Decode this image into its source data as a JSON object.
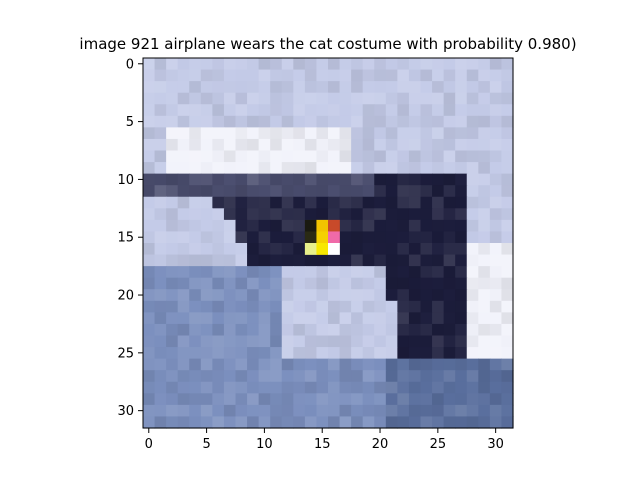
{
  "chart_data": {
    "type": "heatmap",
    "title": "image 921  airplane wears the cat costume with probability 0.980)",
    "xlabel": "",
    "ylabel": "",
    "xlim": [
      -0.5,
      31.5
    ],
    "ylim": [
      31.5,
      -0.5
    ],
    "xticks": [
      0,
      5,
      10,
      15,
      20,
      25,
      30
    ],
    "yticks": [
      0,
      5,
      10,
      15,
      20,
      25,
      30
    ],
    "grid": false,
    "image_size": [
      32,
      32
    ],
    "regions": [
      {
        "name": "sky",
        "color": "#c4cbe8"
      },
      {
        "name": "white-clouds",
        "color": "#f2f3fb"
      },
      {
        "name": "airplane-body",
        "color": "#1c1d3c"
      },
      {
        "name": "airplane-edge",
        "color": "#4a4d6e"
      },
      {
        "name": "lower-clouds",
        "color": "#7b8fbe"
      },
      {
        "name": "bottom-band",
        "color": "#5a6f9e"
      }
    ],
    "patch": {
      "cells": [
        {
          "x": 14,
          "y": 14,
          "color": "#1a1a10"
        },
        {
          "x": 15,
          "y": 14,
          "color": "#f2c400"
        },
        {
          "x": 16,
          "y": 14,
          "color": "#c84a2a"
        },
        {
          "x": 14,
          "y": 15,
          "color": "#2a2a14"
        },
        {
          "x": 15,
          "y": 15,
          "color": "#f5d000"
        },
        {
          "x": 16,
          "y": 15,
          "color": "#f06aa8"
        },
        {
          "x": 14,
          "y": 16,
          "color": "#e8f08a"
        },
        {
          "x": 15,
          "y": 16,
          "color": "#f8e800"
        },
        {
          "x": 16,
          "y": 16,
          "color": "#ffffff"
        }
      ]
    }
  }
}
